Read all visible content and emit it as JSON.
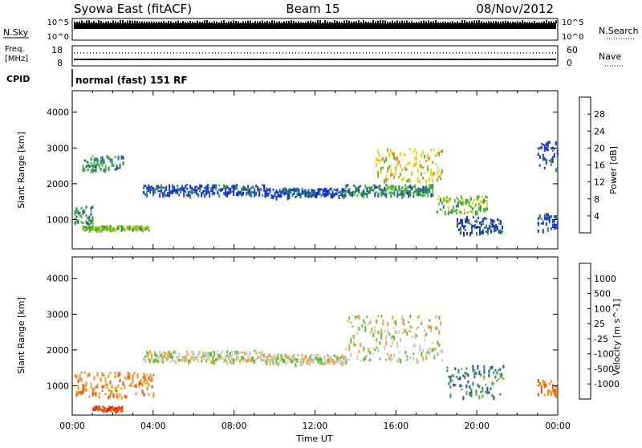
{
  "header": {
    "station": "Syowa East (fitACF)",
    "beam": "Beam 15",
    "date": "08/Nov/2012"
  },
  "noise_panel": {
    "left_label": "N.Sky",
    "right_label": "N.Search",
    "top_tick": "10^5",
    "bottom_tick": "10^0"
  },
  "freq_panel": {
    "left_label_1": "Freq.",
    "left_label_2": "[MHz]",
    "right_label": "Nave",
    "left_ticks": [
      "18",
      "8"
    ],
    "right_ticks": [
      "60",
      "0"
    ]
  },
  "cpid": {
    "label": "CPID",
    "text": "normal (fast) 151 RF"
  },
  "x_axis": {
    "title": "Time UT",
    "ticks": [
      "00:00",
      "04:00",
      "08:00",
      "12:00",
      "16:00",
      "20:00",
      "00:00"
    ]
  },
  "colors": {
    "power": [
      "#1f1ff5",
      "#1a49b0",
      "#2e8a5a",
      "#58c02a",
      "#e6d51f",
      "#f08a14",
      "#e84f12",
      "#e61414"
    ],
    "velocity": [
      "#1a2fc4",
      "#2348a5",
      "#2e8a5a",
      "#58c02a",
      "#c8c8c8",
      "#f0a024",
      "#f08a14",
      "#e84f12",
      "#e61414"
    ]
  },
  "chart_data": [
    {
      "type": "heatmap",
      "title": "Power",
      "xlabel": "Time UT",
      "ylabel": "Slant Range [km]",
      "colorbar_label": "Power [dB]",
      "colorbar_ticks": [
        "28",
        "24",
        "20",
        "16",
        "12",
        "8",
        "4"
      ],
      "x_ticks": [
        "00:00",
        "04:00",
        "08:00",
        "12:00",
        "16:00",
        "20:00",
        "00:00"
      ],
      "y_ticks": [
        "4000",
        "3000",
        "2000",
        "1000"
      ],
      "ylim": [
        180,
        4600
      ],
      "xlim_hours": [
        0,
        24
      ],
      "echo_bands": [
        {
          "start_h": 0.1,
          "end_h": 1.0,
          "range_km": [
            900,
            1400
          ],
          "level": 2
        },
        {
          "start_h": 0.5,
          "end_h": 3.8,
          "range_km": [
            750,
            850
          ],
          "level": 3
        },
        {
          "start_h": 0.5,
          "end_h": 2.5,
          "range_km": [
            2400,
            2800
          ],
          "level": 2
        },
        {
          "start_h": 3.5,
          "end_h": 9.5,
          "range_km": [
            1700,
            2000
          ],
          "level": 1
        },
        {
          "start_h": 9.5,
          "end_h": 13.5,
          "range_km": [
            1650,
            1900
          ],
          "level": 1
        },
        {
          "start_h": 13.5,
          "end_h": 17.8,
          "range_km": [
            1700,
            2000
          ],
          "level": 2
        },
        {
          "start_h": 15.0,
          "end_h": 18.3,
          "range_km": [
            2100,
            3000
          ],
          "level": 4
        },
        {
          "start_h": 18.0,
          "end_h": 20.5,
          "range_km": [
            1200,
            1700
          ],
          "level": 3
        },
        {
          "start_h": 19.0,
          "end_h": 21.3,
          "range_km": [
            650,
            1100
          ],
          "level": 1
        },
        {
          "start_h": 23.0,
          "end_h": 24.0,
          "range_km": [
            700,
            1200
          ],
          "level": 1
        },
        {
          "start_h": 23.0,
          "end_h": 24.0,
          "range_km": [
            2400,
            3200
          ],
          "level": 1
        }
      ]
    },
    {
      "type": "heatmap",
      "title": "Velocity",
      "xlabel": "Time UT",
      "ylabel": "Slant Range [km]",
      "colorbar_label": "Velocity [m s^-1]",
      "colorbar_ticks": [
        "1000",
        "500",
        "100",
        "25",
        "-25",
        "-100",
        "-500",
        "-1000"
      ],
      "x_ticks": [
        "00:00",
        "04:00",
        "08:00",
        "12:00",
        "16:00",
        "20:00",
        "00:00"
      ],
      "y_ticks": [
        "4000",
        "3000",
        "2000",
        "1000"
      ],
      "ylim": [
        180,
        4600
      ],
      "xlim_hours": [
        0,
        24
      ],
      "echo_bands": [
        {
          "start_h": 0.1,
          "end_h": 4.0,
          "range_km": [
            700,
            1400
          ],
          "level": 6
        },
        {
          "start_h": 1.0,
          "end_h": 2.5,
          "range_km": [
            350,
            450
          ],
          "level": 7
        },
        {
          "start_h": 3.5,
          "end_h": 9.5,
          "range_km": [
            1700,
            2000
          ],
          "level": 4
        },
        {
          "start_h": 9.5,
          "end_h": 13.5,
          "range_km": [
            1650,
            1900
          ],
          "level": 4
        },
        {
          "start_h": 13.5,
          "end_h": 18.3,
          "range_km": [
            1700,
            3000
          ],
          "level": 4
        },
        {
          "start_h": 18.5,
          "end_h": 21.3,
          "range_km": [
            700,
            1600
          ],
          "level": 2
        },
        {
          "start_h": 23.0,
          "end_h": 24.0,
          "range_km": [
            700,
            1200
          ],
          "level": 6
        }
      ]
    }
  ]
}
